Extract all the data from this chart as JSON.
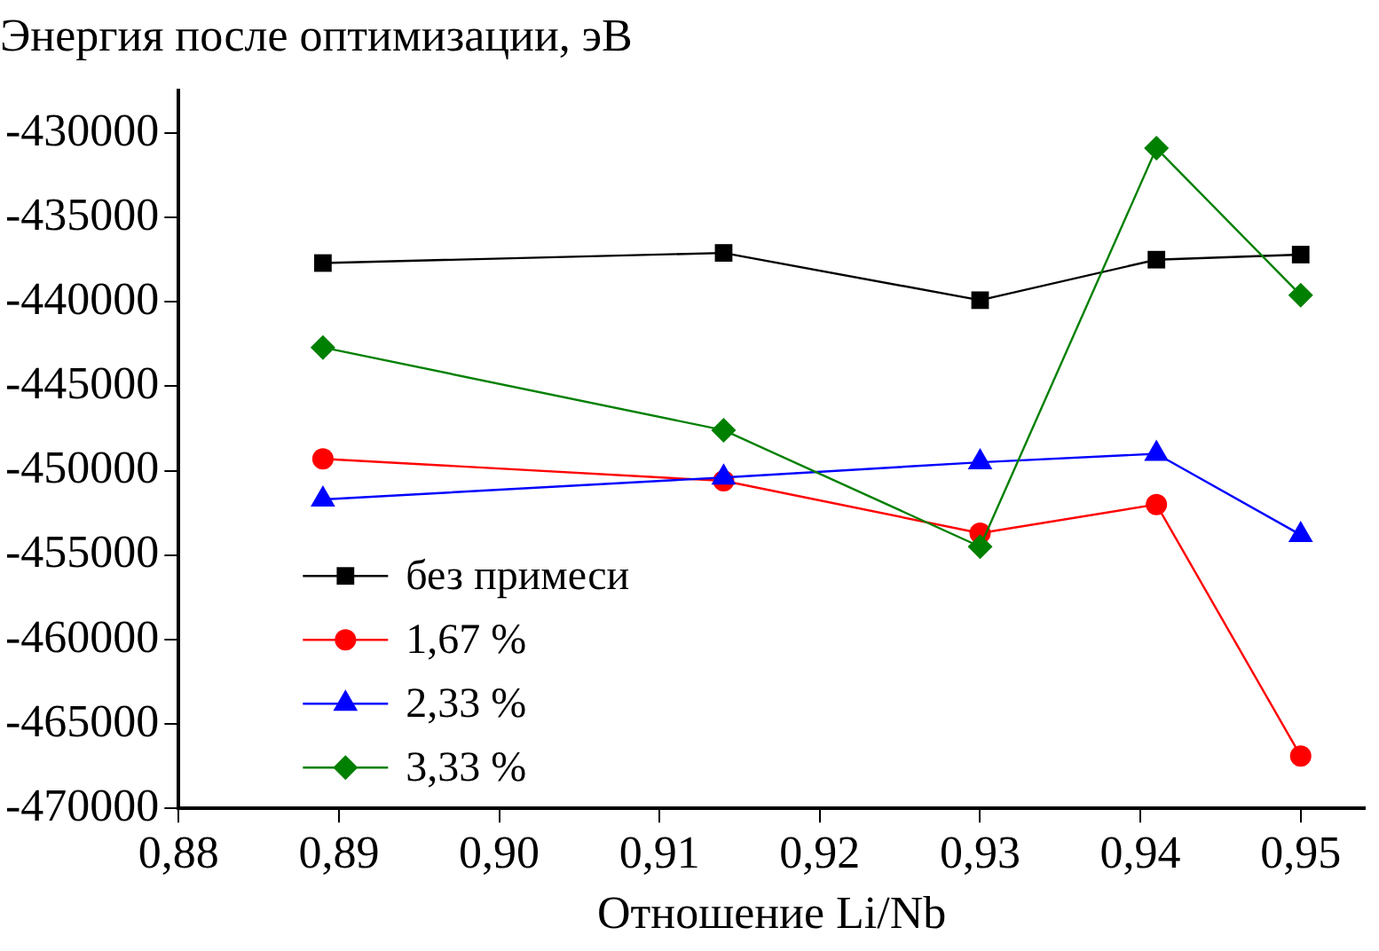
{
  "chart_data": {
    "type": "line",
    "ylabel": "Энергия после оптимизации, эВ",
    "xlabel": "Отношение Li/Nb",
    "x": [
      0.889,
      0.914,
      0.93,
      0.941,
      0.95
    ],
    "series": [
      {
        "name": "без примеси",
        "color": "#000000",
        "marker": "square",
        "values": [
          -437700,
          -437100,
          -439900,
          -437500,
          -437200
        ]
      },
      {
        "name": "1,67 %",
        "color": "#ff0000",
        "marker": "circle",
        "values": [
          -449300,
          -450600,
          -453700,
          -452000,
          -466900
        ]
      },
      {
        "name": "2,33 %",
        "color": "#0000ff",
        "marker": "triangle",
        "values": [
          -451700,
          -450400,
          -449500,
          -449000,
          -453800
        ]
      },
      {
        "name": "3,33 %",
        "color": "#008000",
        "marker": "diamond",
        "values": [
          -442700,
          -447600,
          -454500,
          -430900,
          -439600
        ]
      }
    ],
    "xlim": [
      0.88,
      0.954
    ],
    "xticks": [
      {
        "value": 0.88,
        "label": "0,88"
      },
      {
        "value": 0.89,
        "label": "0,89"
      },
      {
        "value": 0.9,
        "label": "0,90"
      },
      {
        "value": 0.91,
        "label": "0,91"
      },
      {
        "value": 0.92,
        "label": "0,92"
      },
      {
        "value": 0.93,
        "label": "0,93"
      },
      {
        "value": 0.94,
        "label": "0,94"
      },
      {
        "value": 0.95,
        "label": "0,95"
      }
    ],
    "ylim": [
      -470000,
      -427500
    ],
    "yticks": [
      -470000,
      -465000,
      -460000,
      -455000,
      -450000,
      -445000,
      -440000,
      -435000,
      -430000
    ],
    "grid": false,
    "legend": "bottom left",
    "line_style": "solid"
  }
}
